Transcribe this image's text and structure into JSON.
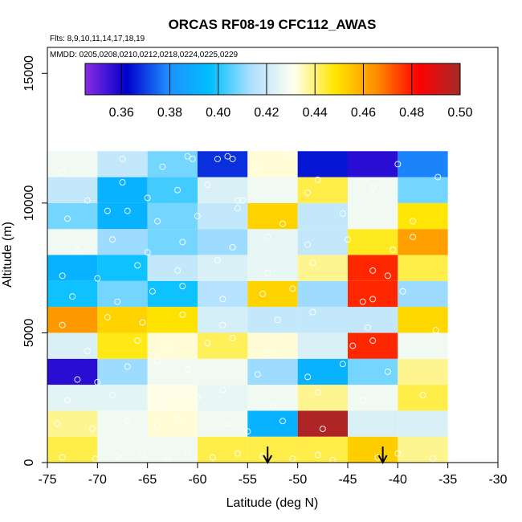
{
  "chart_data": {
    "type": "heatmap",
    "title": "ORCAS RF08-19 CFC112_AWAS",
    "subtitle_flights": "Flts: 8,9,10,11,14,17,18,19",
    "subtitle_dates": "MMDD: 0205,0208,0210,0212,0218,0224,0225,0229",
    "xlabel": "Latitude (deg N)",
    "ylabel": "Altitude (m)",
    "xlim": [
      -75,
      -30
    ],
    "ylim": [
      0,
      16000
    ],
    "xticks": [
      -75,
      -70,
      -65,
      -60,
      -55,
      -50,
      -45,
      -40,
      -35,
      -30
    ],
    "xtick_labels": [
      "-75",
      "-70",
      "-65",
      "-60",
      "-55",
      "-50",
      "-45",
      "-40",
      "-35",
      "-30"
    ],
    "yticks": [
      0,
      5000,
      10000,
      15000
    ],
    "ytick_labels": [
      "0",
      "5000",
      "10000",
      "15000"
    ],
    "colorbar": {
      "min": 0.345,
      "max": 0.5,
      "ticks": [
        0.36,
        0.38,
        0.4,
        0.42,
        0.44,
        0.46,
        0.48,
        0.5
      ],
      "tick_labels": [
        "0.36",
        "0.38",
        "0.40",
        "0.42",
        "0.44",
        "0.46",
        "0.48",
        "0.50"
      ],
      "colors": [
        "#8a2be2",
        "#0000cd",
        "#1e90ff",
        "#00bfff",
        "#b0e0ff",
        "#fffff0",
        "#ffe600",
        "#ff8c00",
        "#ff0000",
        "#a52a2a"
      ]
    },
    "grid": {
      "x_edges": [
        -75,
        -70,
        -65,
        -60,
        -55,
        -50,
        -45,
        -40,
        -35
      ],
      "y_edges": [
        0,
        1000,
        2000,
        3000,
        4000,
        5000,
        6000,
        7000,
        8000,
        9000,
        10000,
        11000,
        12000
      ],
      "values": [
        [
          0.443,
          0.428,
          0.428,
          0.443,
          0.443,
          0.443,
          0.453,
          0.438
        ],
        [
          0.438,
          0.428,
          0.433,
          0.428,
          0.392,
          0.498,
          0.423,
          0.423
        ],
        [
          0.425,
          0.425,
          0.432,
          0.426,
          0.428,
          0.438,
          0.428,
          0.443
        ],
        [
          0.357,
          0.412,
          0.428,
          0.428,
          0.412,
          0.392,
          0.408,
          0.438
        ],
        [
          0.423,
          0.447,
          0.433,
          0.442,
          0.433,
          0.423,
          0.478,
          0.428
        ],
        [
          0.463,
          0.452,
          0.449,
          0.422,
          0.418,
          0.418,
          0.418,
          0.451
        ],
        [
          0.398,
          0.408,
          0.398,
          0.415,
          0.452,
          0.412,
          0.478,
          0.412
        ],
        [
          0.392,
          0.398,
          0.418,
          0.423,
          0.426,
          0.438,
          0.478,
          0.443
        ],
        [
          0.428,
          0.412,
          0.408,
          0.412,
          0.426,
          0.418,
          0.446,
          0.462
        ],
        [
          0.408,
          0.392,
          0.408,
          0.418,
          0.452,
          0.418,
          0.428,
          0.448
        ],
        [
          0.418,
          0.392,
          0.403,
          0.423,
          0.428,
          0.443,
          0.428,
          0.408
        ],
        [
          0.428,
          0.418,
          0.408,
          0.368,
          0.433,
          0.365,
          0.357,
          0.378
        ]
      ]
    },
    "points": [
      [
        -73.5,
        200
      ],
      [
        -70.2,
        150
      ],
      [
        -68,
        250
      ],
      [
        -65.5,
        300
      ],
      [
        -63,
        150
      ],
      [
        -61,
        400
      ],
      [
        -58.5,
        200
      ],
      [
        -56,
        350
      ],
      [
        -53.5,
        250
      ],
      [
        -50.5,
        150
      ],
      [
        -48,
        300
      ],
      [
        -46.5,
        100
      ],
      [
        -42,
        200
      ],
      [
        -40,
        350
      ],
      [
        -36.5,
        150
      ],
      [
        -74,
        1500
      ],
      [
        -70.5,
        1300
      ],
      [
        -67,
        1600
      ],
      [
        -64,
        1400
      ],
      [
        -62,
        1700
      ],
      [
        -57,
        1500
      ],
      [
        -55,
        1200
      ],
      [
        -51.5,
        1600
      ],
      [
        -47.5,
        1300
      ],
      [
        -73,
        2400
      ],
      [
        -68.5,
        2600
      ],
      [
        -64.5,
        2300
      ],
      [
        -60,
        2500
      ],
      [
        -57.5,
        2800
      ],
      [
        -52.5,
        2200
      ],
      [
        -48,
        2700
      ],
      [
        -43.5,
        2400
      ],
      [
        -37.5,
        2600
      ],
      [
        -72,
        3200
      ],
      [
        -70,
        3100
      ],
      [
        -67,
        3700
      ],
      [
        -64,
        3900
      ],
      [
        -61,
        3600
      ],
      [
        -54,
        3400
      ],
      [
        -49,
        3300
      ],
      [
        -45.5,
        3800
      ],
      [
        -41,
        3500
      ],
      [
        -71,
        4300
      ],
      [
        -66,
        4700
      ],
      [
        -63,
        4400
      ],
      [
        -59,
        4600
      ],
      [
        -56.5,
        4800
      ],
      [
        -53,
        4200
      ],
      [
        -44.5,
        4500
      ],
      [
        -42.5,
        4700
      ],
      [
        -73.5,
        5300
      ],
      [
        -69,
        5600
      ],
      [
        -65.5,
        5400
      ],
      [
        -61.5,
        5700
      ],
      [
        -57.5,
        5300
      ],
      [
        -52,
        5500
      ],
      [
        -48.5,
        5800
      ],
      [
        -43,
        5200
      ],
      [
        -36.2,
        5100
      ],
      [
        -72.5,
        6400
      ],
      [
        -68,
        6200
      ],
      [
        -64.5,
        6600
      ],
      [
        -61.5,
        6800
      ],
      [
        -57.5,
        6300
      ],
      [
        -53.5,
        6500
      ],
      [
        -50.5,
        6700
      ],
      [
        -43.5,
        6200
      ],
      [
        -42.5,
        6300
      ],
      [
        -39.5,
        6600
      ],
      [
        -73.5,
        7200
      ],
      [
        -70,
        7100
      ],
      [
        -66,
        7600
      ],
      [
        -62,
        7400
      ],
      [
        -58,
        7800
      ],
      [
        -53,
        7300
      ],
      [
        -48.5,
        7700
      ],
      [
        -42.5,
        7400
      ],
      [
        -41,
        7200
      ],
      [
        -72,
        8200
      ],
      [
        -68.5,
        8600
      ],
      [
        -65,
        8100
      ],
      [
        -61.5,
        8500
      ],
      [
        -56.5,
        8300
      ],
      [
        -53,
        8700
      ],
      [
        -49,
        8400
      ],
      [
        -45,
        8600
      ],
      [
        -40.5,
        8200
      ],
      [
        -38.5,
        8700
      ],
      [
        -73,
        9400
      ],
      [
        -69,
        9700
      ],
      [
        -67,
        9700
      ],
      [
        -64,
        9300
      ],
      [
        -60,
        9500
      ],
      [
        -56,
        9800
      ],
      [
        -51.5,
        9200
      ],
      [
        -45.5,
        9600
      ],
      [
        -38.5,
        9300
      ],
      [
        -71,
        10100
      ],
      [
        -67.5,
        10800
      ],
      [
        -65,
        10200
      ],
      [
        -62,
        10500
      ],
      [
        -59,
        10700
      ],
      [
        -56,
        10100
      ],
      [
        -55.5,
        10100
      ],
      [
        -49,
        10400
      ],
      [
        -42.5,
        10600
      ],
      [
        -73.5,
        11200
      ],
      [
        -67.5,
        11700
      ],
      [
        -63.5,
        11400
      ],
      [
        -61,
        11800
      ],
      [
        -60.5,
        11700
      ],
      [
        -58,
        11700
      ],
      [
        -57,
        11800
      ],
      [
        -56.5,
        11700
      ],
      [
        -54,
        11400
      ],
      [
        -51,
        11800
      ],
      [
        -48,
        10900
      ],
      [
        -40,
        11500
      ],
      [
        -36,
        11000
      ]
    ],
    "arrows_at_latitude": [
      -53,
      -41.5
    ]
  }
}
